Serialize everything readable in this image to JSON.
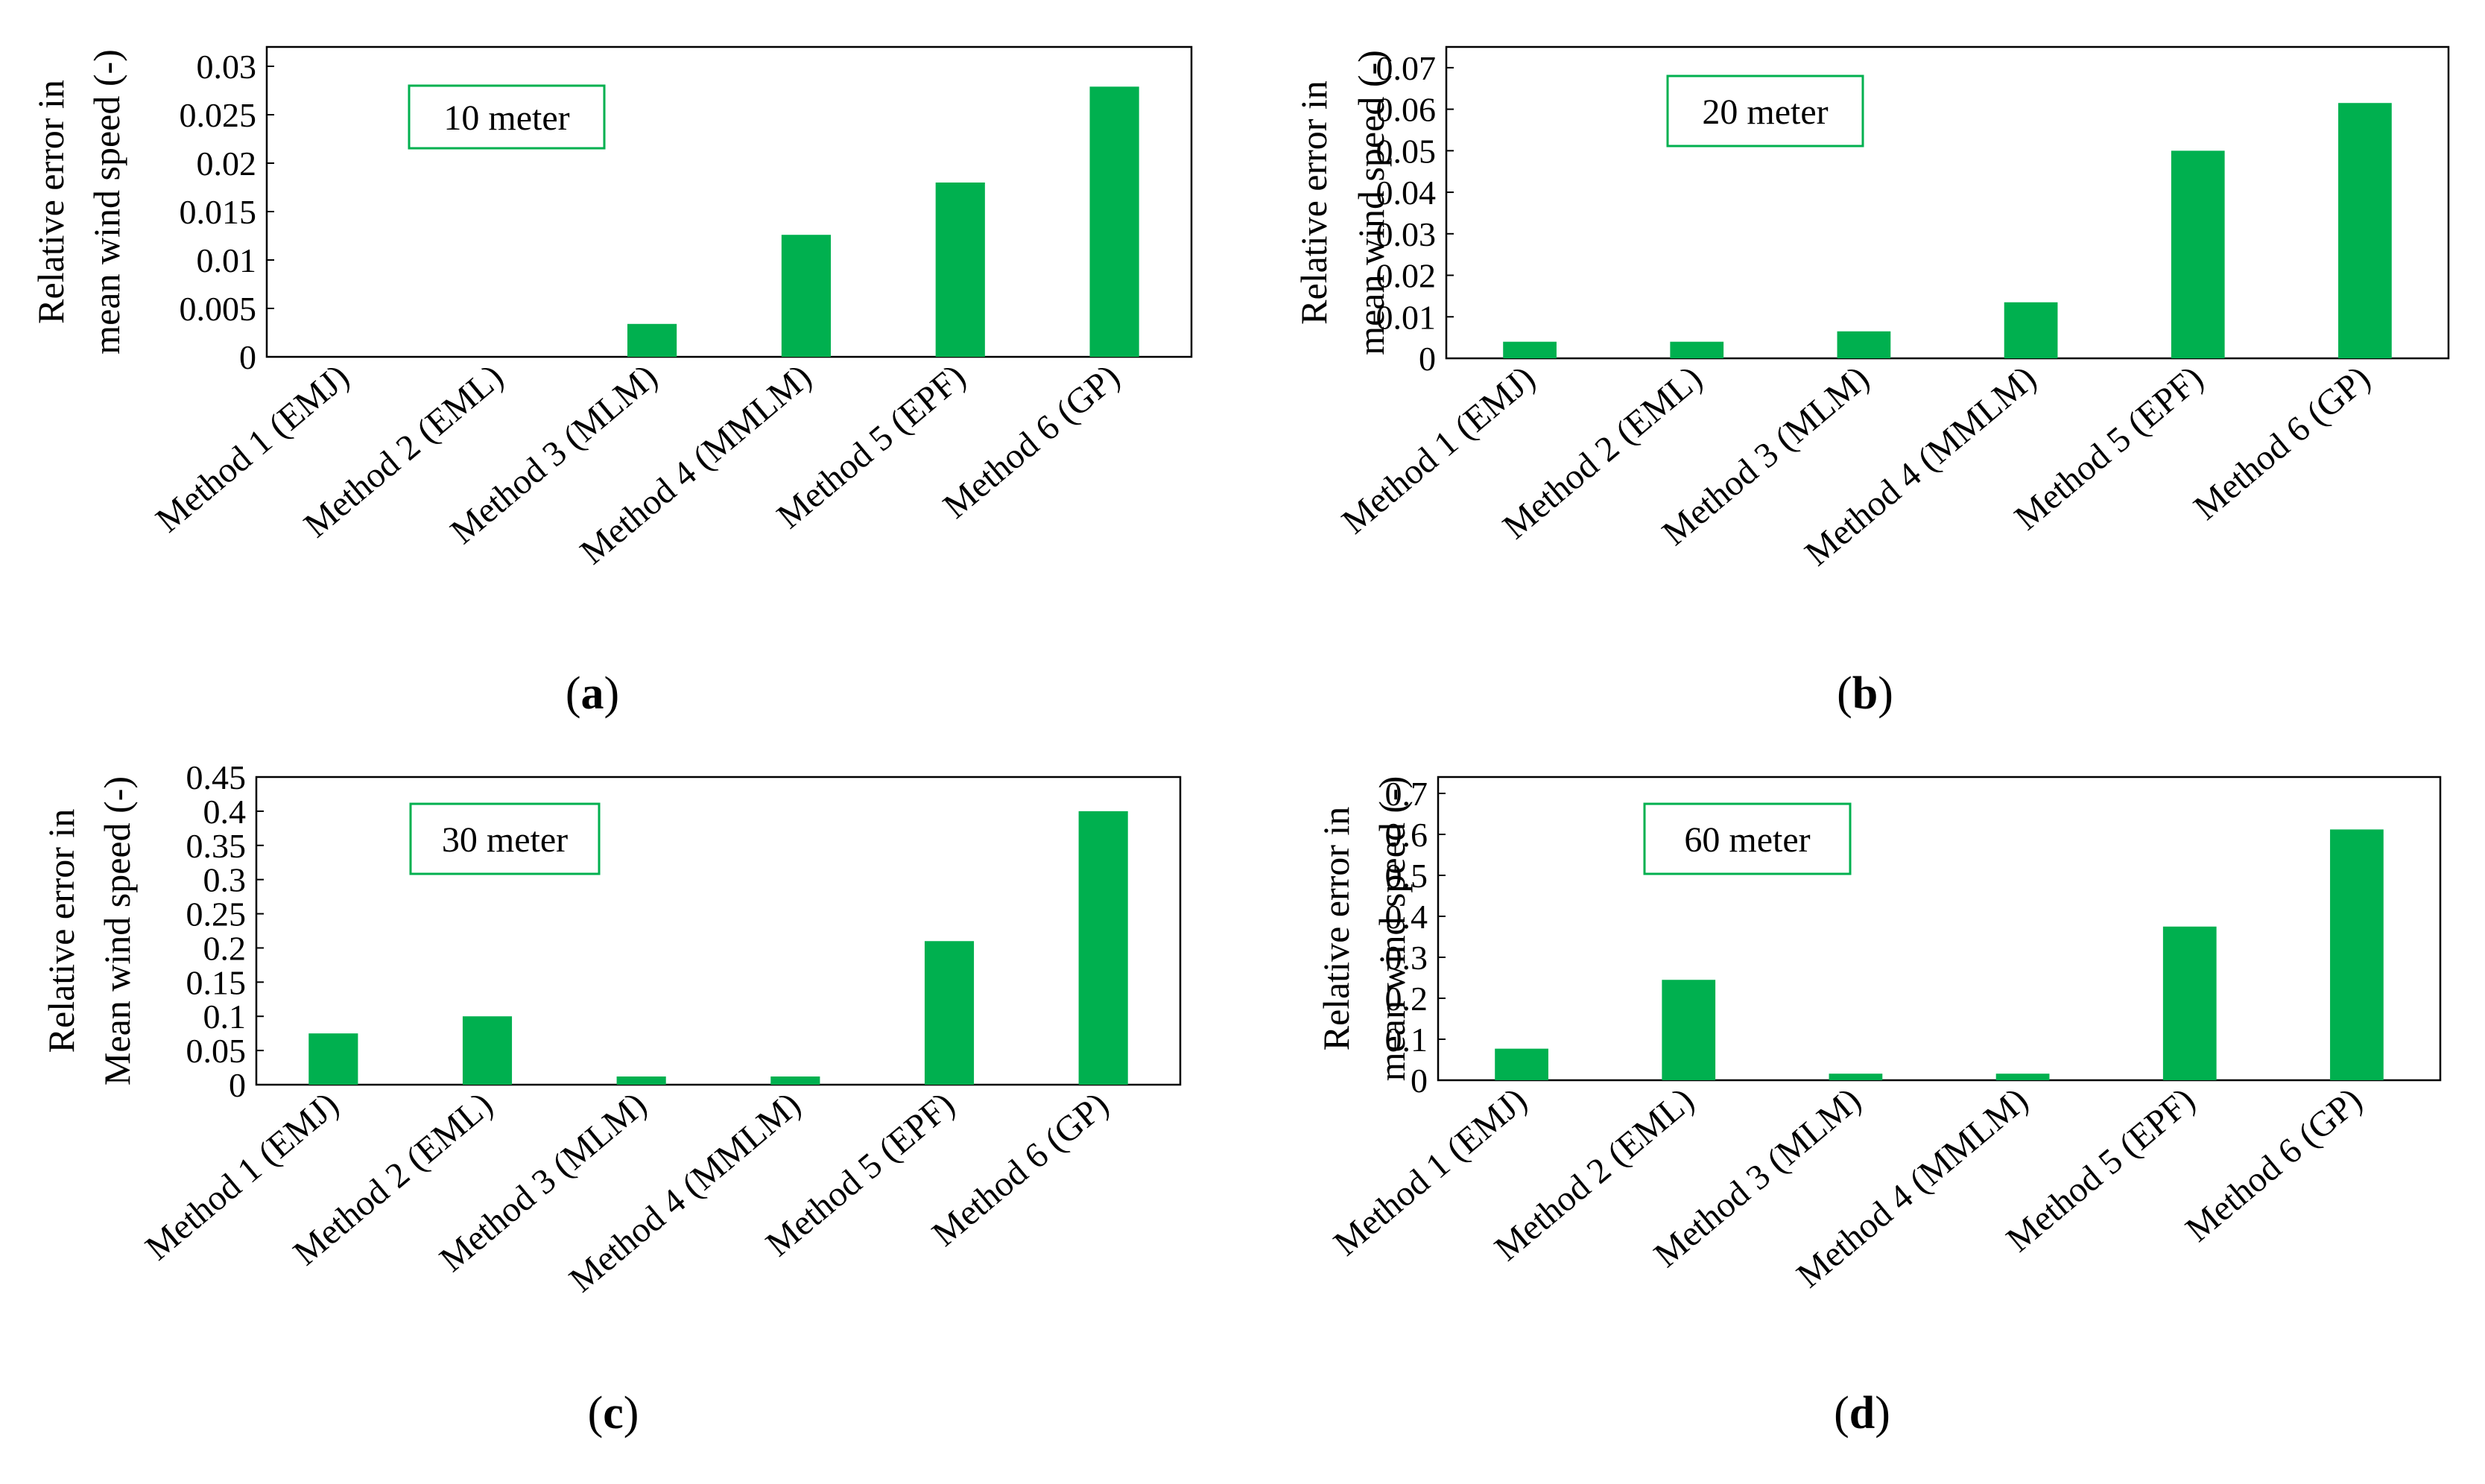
{
  "figure": {
    "bar_color": "#00b04f",
    "box_color": "#00b04f"
  },
  "chart_data": [
    {
      "type": "bar",
      "panel_label": "a",
      "annotation": "10 meter",
      "ylabel": [
        "Relative error in",
        "mean wind speed (-)"
      ],
      "xlabel": "",
      "categories": [
        "Method 1 (EMJ)",
        "Method 2 (EML)",
        "Method 3 (MLM)",
        "Method 4 (MMLM)",
        "Method 5 (EPF)",
        "Method 6 (GP)"
      ],
      "values": [
        0,
        0,
        0.0034,
        0.0126,
        0.018,
        0.0279
      ],
      "ylim": [
        0,
        0.032
      ],
      "yticks": [
        "0",
        "0.005",
        "0.01",
        "0.015",
        "0.02",
        "0.025",
        "0.03"
      ],
      "ytick_values": [
        0,
        0.005,
        0.01,
        0.015,
        0.02,
        0.025,
        0.03
      ]
    },
    {
      "type": "bar",
      "panel_label": "b",
      "annotation": "20 meter",
      "ylabel": [
        "Relative error in",
        "mean wind speed (-)"
      ],
      "xlabel": "",
      "categories": [
        "Method 1 (EMJ)",
        "Method 2 (EML)",
        "Method 3 (MLM)",
        "Method 4 (MMLM)",
        "Method 5 (EPF)",
        "Method 6 (GP)"
      ],
      "values": [
        0.004,
        0.004,
        0.0065,
        0.0135,
        0.05,
        0.0615
      ],
      "ylim": [
        0,
        0.075
      ],
      "yticks": [
        "0",
        "0.01",
        "0.02",
        "0.03",
        "0.04",
        "0.05",
        "0.06",
        "0.07"
      ],
      "ytick_values": [
        0,
        0.01,
        0.02,
        0.03,
        0.04,
        0.05,
        0.06,
        0.07
      ]
    },
    {
      "type": "bar",
      "panel_label": "c",
      "annotation": "30 meter",
      "ylabel": [
        "Relative error in",
        "Mean wind speed (-)"
      ],
      "xlabel": "",
      "categories": [
        "Method 1 (EMJ)",
        "Method 2 (EML)",
        "Method 3 (MLM)",
        "Method 4 (MMLM)",
        "Method 5 (EPF)",
        "Method 6 (GP)"
      ],
      "values": [
        0.075,
        0.1,
        0.012,
        0.012,
        0.21,
        0.4
      ],
      "ylim": [
        0,
        0.45
      ],
      "yticks": [
        "0",
        "0.05",
        "0.1",
        "0.15",
        "0.2",
        "0.25",
        "0.3",
        "0.35",
        "0.4",
        "0.45"
      ],
      "ytick_values": [
        0,
        0.05,
        0.1,
        0.15,
        0.2,
        0.25,
        0.3,
        0.35,
        0.4,
        0.45
      ]
    },
    {
      "type": "bar",
      "panel_label": "d",
      "annotation": "60 meter",
      "ylabel": [
        "Relative error in",
        "mean wind speed (-)"
      ],
      "xlabel": "",
      "categories": [
        "Method 1 (EMJ)",
        "Method 2 (EML)",
        "Method 3 (MLM)",
        "Method 4 (MMLM)",
        "Method 5 (EPF)",
        "Method 6 (GP)"
      ],
      "values": [
        0.077,
        0.245,
        0.016,
        0.016,
        0.375,
        0.612
      ],
      "ylim": [
        0,
        0.74
      ],
      "yticks": [
        "0",
        "0.1",
        "0.2",
        "0.3",
        "0.4",
        "0.5",
        "0.6",
        "0.7"
      ],
      "ytick_values": [
        0,
        0.1,
        0.2,
        0.3,
        0.4,
        0.5,
        0.6,
        0.7
      ]
    }
  ]
}
